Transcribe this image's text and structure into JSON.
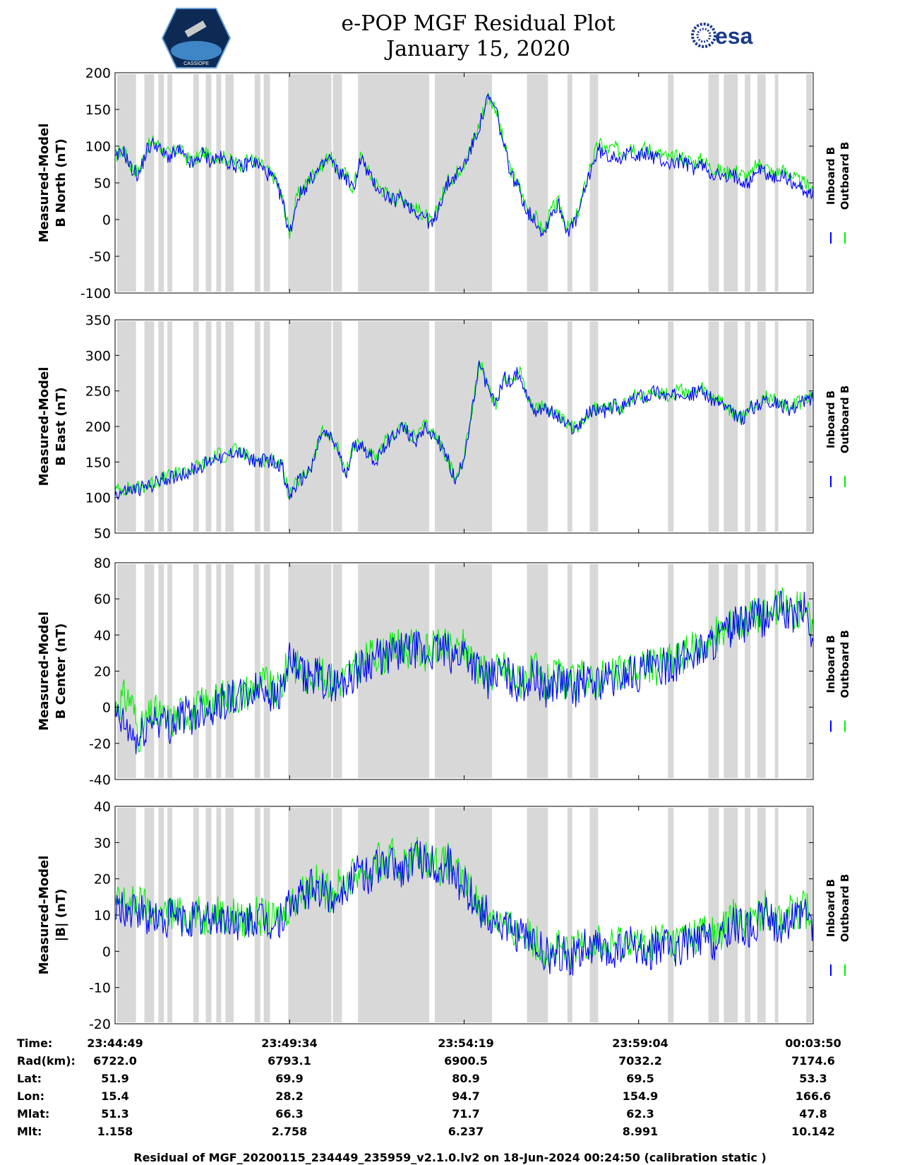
{
  "header": {
    "title_line1": "e-POP MGF Residual Plot",
    "title_line2": "January 15, 2020",
    "logo_left_text": "CASSIOPE",
    "logo_right_text": "esa"
  },
  "legend": {
    "inboard": "Inboard B",
    "outboard": "Outboard B"
  },
  "colors": {
    "inboard": "#0000ff",
    "outboard": "#00ee00",
    "shade": "#d8d8d8"
  },
  "chart_data": [
    {
      "type": "line",
      "title": "",
      "ylabel_line1": "Measured-Model",
      "ylabel_line2": "B North (nT)",
      "ylim": [
        -100,
        200
      ],
      "yticks": [
        "200",
        "150",
        "100",
        "50",
        "0",
        "-50",
        "-100"
      ],
      "ytick_values": [
        200,
        150,
        100,
        50,
        0,
        -50,
        -100
      ],
      "series": [
        {
          "name": "Inboard B",
          "values": [
            80,
            95,
            70,
            60,
            95,
            105,
            90,
            85,
            95,
            80,
            75,
            90,
            80,
            85,
            80,
            75,
            70,
            80,
            75,
            65,
            55,
            30,
            -20,
            30,
            45,
            60,
            70,
            85,
            65,
            60,
            40,
            85,
            60,
            45,
            35,
            25,
            30,
            20,
            10,
            5,
            -10,
            25,
            50,
            60,
            75,
            100,
            130,
            165,
            150,
            100,
            60,
            40,
            10,
            0,
            -20,
            10,
            20,
            -15,
            -5,
            30,
            70,
            95,
            85,
            90,
            80,
            95,
            85,
            90,
            85,
            80,
            75,
            80,
            75,
            70,
            75,
            65,
            60,
            55,
            60,
            55,
            50,
            70,
            65,
            55,
            60,
            55,
            45,
            40,
            35
          ]
        },
        {
          "name": "Outboard B",
          "values": [
            85,
            97,
            73,
            64,
            98,
            108,
            94,
            88,
            98,
            84,
            78,
            93,
            84,
            88,
            83,
            78,
            74,
            83,
            78,
            68,
            58,
            32,
            -18,
            33,
            48,
            63,
            73,
            88,
            68,
            63,
            43,
            88,
            63,
            48,
            38,
            28,
            33,
            23,
            13,
            8,
            -7,
            28,
            53,
            63,
            78,
            103,
            133,
            168,
            153,
            103,
            63,
            43,
            13,
            3,
            -17,
            13,
            23,
            -12,
            -2,
            35,
            78,
            103,
            95,
            98,
            90,
            103,
            93,
            98,
            92,
            88,
            82,
            87,
            82,
            77,
            82,
            72,
            67,
            63,
            68,
            62,
            57,
            77,
            72,
            62,
            67,
            63,
            53,
            48,
            43
          ]
        }
      ]
    },
    {
      "type": "line",
      "title": "",
      "ylabel_line1": "Measured-Model",
      "ylabel_line2": "B East (nT)",
      "ylim": [
        50,
        350
      ],
      "yticks": [
        "350",
        "300",
        "250",
        "200",
        "150",
        "100",
        "50"
      ],
      "ytick_values": [
        350,
        300,
        250,
        200,
        150,
        100,
        50
      ],
      "series": [
        {
          "name": "Inboard B",
          "values": [
            105,
            108,
            110,
            112,
            115,
            120,
            125,
            128,
            132,
            135,
            140,
            145,
            150,
            160,
            155,
            165,
            160,
            155,
            150,
            152,
            150,
            145,
            100,
            120,
            130,
            150,
            190,
            185,
            170,
            130,
            170,
            175,
            160,
            150,
            175,
            185,
            200,
            190,
            180,
            200,
            190,
            175,
            150,
            120,
            160,
            220,
            290,
            250,
            230,
            270,
            260,
            280,
            240,
            220,
            230,
            220,
            210,
            200,
            195,
            210,
            220,
            225,
            220,
            230,
            225,
            235,
            245,
            240,
            250,
            245,
            240,
            250,
            248,
            245,
            250,
            240,
            235,
            225,
            215,
            210,
            225,
            230,
            240,
            235,
            230,
            225,
            230,
            235,
            240
          ]
        },
        {
          "name": "Outboard B",
          "values": [
            110,
            112,
            113,
            114,
            117,
            122,
            127,
            130,
            134,
            137,
            142,
            147,
            152,
            162,
            157,
            167,
            162,
            157,
            152,
            154,
            152,
            147,
            102,
            122,
            132,
            152,
            192,
            187,
            172,
            132,
            172,
            177,
            162,
            152,
            177,
            187,
            202,
            192,
            182,
            202,
            192,
            177,
            152,
            122,
            162,
            222,
            292,
            252,
            232,
            272,
            262,
            282,
            242,
            222,
            232,
            222,
            212,
            202,
            197,
            212,
            222,
            227,
            222,
            232,
            227,
            237,
            247,
            242,
            252,
            247,
            242,
            252,
            250,
            247,
            252,
            242,
            237,
            227,
            217,
            212,
            227,
            232,
            242,
            237,
            232,
            227,
            232,
            237,
            242
          ]
        }
      ]
    },
    {
      "type": "line",
      "title": "",
      "ylabel_line1": "Measured-Model",
      "ylabel_line2": "B Center (nT)",
      "ylim": [
        -40,
        80
      ],
      "yticks": [
        "80",
        "60",
        "40",
        "20",
        "0",
        "-20",
        "-40"
      ],
      "ytick_values": [
        80,
        60,
        40,
        20,
        0,
        -20,
        -40
      ],
      "series": [
        {
          "name": "Inboard B",
          "values": [
            -5,
            -10,
            -15,
            -20,
            -10,
            -5,
            -8,
            -10,
            -6,
            -4,
            -5,
            0,
            0,
            2,
            4,
            5,
            5,
            8,
            10,
            12,
            5,
            10,
            25,
            20,
            15,
            18,
            15,
            14,
            12,
            15,
            18,
            22,
            25,
            28,
            26,
            30,
            32,
            30,
            32,
            28,
            30,
            32,
            30,
            28,
            32,
            25,
            20,
            15,
            18,
            20,
            15,
            12,
            15,
            18,
            10,
            12,
            15,
            12,
            10,
            15,
            12,
            14,
            16,
            14,
            18,
            20,
            18,
            22,
            20,
            22,
            24,
            25,
            28,
            30,
            32,
            35,
            38,
            40,
            45,
            45,
            48,
            50,
            48,
            52,
            55,
            50,
            52,
            55,
            35
          ]
        },
        {
          "name": "Outboard B",
          "values": [
            0,
            5,
            5,
            -15,
            -8,
            -3,
            -6,
            -8,
            -4,
            -2,
            -3,
            2,
            2,
            4,
            6,
            7,
            7,
            10,
            12,
            14,
            7,
            12,
            27,
            22,
            17,
            20,
            17,
            16,
            14,
            17,
            20,
            24,
            27,
            30,
            28,
            32,
            34,
            32,
            34,
            30,
            32,
            34,
            32,
            30,
            34,
            27,
            22,
            17,
            20,
            22,
            17,
            14,
            17,
            20,
            12,
            14,
            17,
            14,
            12,
            17,
            14,
            16,
            18,
            16,
            20,
            22,
            20,
            24,
            22,
            24,
            26,
            27,
            30,
            32,
            34,
            37,
            40,
            42,
            47,
            47,
            50,
            52,
            50,
            54,
            57,
            52,
            54,
            57,
            37
          ]
        }
      ]
    },
    {
      "type": "line",
      "title": "",
      "ylabel_line1": "Measured-Model",
      "ylabel_line2": "|B| (nT)",
      "ylim": [
        -20,
        40
      ],
      "yticks": [
        "40",
        "30",
        "20",
        "10",
        "0",
        "-10",
        "-20"
      ],
      "ytick_values": [
        40,
        30,
        20,
        10,
        0,
        -10,
        -20
      ],
      "series": [
        {
          "name": "Inboard B",
          "values": [
            10,
            12,
            10,
            11,
            9,
            10,
            8,
            10,
            9,
            8,
            10,
            8,
            9,
            10,
            8,
            9,
            7,
            8,
            9,
            8,
            7,
            9,
            12,
            14,
            16,
            18,
            17,
            15,
            16,
            18,
            20,
            22,
            20,
            24,
            22,
            25,
            22,
            24,
            26,
            24,
            25,
            22,
            24,
            20,
            18,
            15,
            12,
            10,
            8,
            6,
            5,
            4,
            3,
            2,
            0,
            -2,
            0,
            -2,
            -1,
            2,
            0,
            1,
            -2,
            0,
            1,
            2,
            0,
            -1,
            1,
            2,
            0,
            1,
            3,
            2,
            4,
            3,
            2,
            5,
            8,
            7,
            6,
            8,
            10,
            8,
            7,
            9,
            8,
            10,
            6
          ]
        },
        {
          "name": "Outboard B",
          "values": [
            13,
            14,
            13,
            13,
            12,
            11,
            9,
            11,
            10,
            9,
            11,
            9,
            10,
            11,
            9,
            10,
            8,
            9,
            10,
            9,
            8,
            10,
            13,
            15,
            17,
            19,
            18,
            16,
            17,
            19,
            21,
            23,
            21,
            25,
            23,
            26,
            23,
            25,
            27,
            25,
            26,
            23,
            25,
            21,
            19,
            16,
            13,
            11,
            9,
            7,
            6,
            5,
            4,
            3,
            1,
            -1,
            1,
            -1,
            0,
            4,
            2,
            3,
            0,
            2,
            3,
            4,
            2,
            1,
            3,
            4,
            2,
            3,
            5,
            4,
            6,
            5,
            4,
            7,
            10,
            9,
            8,
            10,
            12,
            10,
            9,
            11,
            10,
            12,
            8
          ]
        }
      ]
    }
  ],
  "footer": {
    "row_labels": [
      "Time:",
      "Rad(km):",
      "Lat:",
      "Lon:",
      "Mlat:",
      "Mlt:"
    ],
    "columns": [
      [
        "23:44:49",
        "6722.0",
        "51.9",
        "15.4",
        "51.3",
        "1.158"
      ],
      [
        "23:49:34",
        "6793.1",
        "69.9",
        "28.2",
        "66.3",
        "2.758"
      ],
      [
        "23:54:19",
        "6900.5",
        "80.9",
        "94.7",
        "71.7",
        "6.237"
      ],
      [
        "23:59:04",
        "7032.2",
        "69.5",
        "154.9",
        "62.3",
        "8.991"
      ],
      [
        "00:03:50",
        "7174.6",
        "53.3",
        "166.6",
        "47.8",
        "10.142"
      ]
    ],
    "caption": "Residual of MGF_20200115_234449_235959_v2.1.0.lv2 on 18-Jun-2024 00:24:50 (calibration static )"
  }
}
